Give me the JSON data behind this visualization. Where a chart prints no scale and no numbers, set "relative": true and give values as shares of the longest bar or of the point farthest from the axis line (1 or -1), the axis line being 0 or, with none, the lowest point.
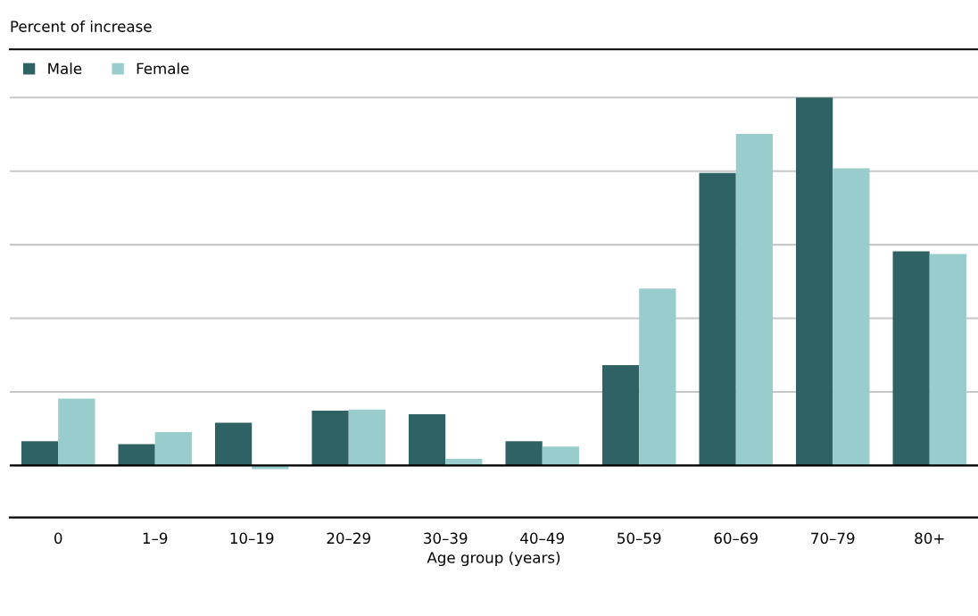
{
  "chart_data": {
    "type": "bar",
    "relative": true,
    "ylabel": "Percent of increase",
    "xlabel": "Age group (years)",
    "categories": [
      "0",
      "1–9",
      "10–19",
      "20–29",
      "30–39",
      "40–49",
      "50–59",
      "60–69",
      "70–79",
      "80+"
    ],
    "series": [
      {
        "name": "Male",
        "color": "#2f6264",
        "values": [
          0.066,
          0.058,
          0.116,
          0.149,
          0.139,
          0.066,
          0.273,
          0.795,
          1,
          0.582
        ]
      },
      {
        "name": "Female",
        "color": "#99cccc",
        "values": [
          0.182,
          0.091,
          -0.01,
          0.152,
          0.018,
          0.051,
          0.481,
          0.901,
          0.808,
          0.575
        ]
      }
    ],
    "grid": "y",
    "legend": "top left"
  }
}
